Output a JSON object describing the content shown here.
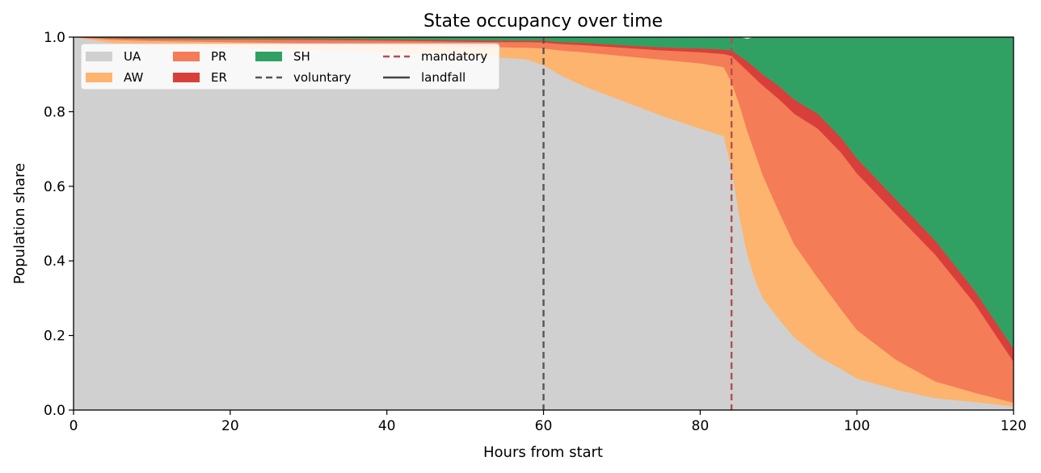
{
  "chart_data": {
    "type": "area",
    "title": "State occupancy over time",
    "xlabel": "Hours from start",
    "ylabel": "Population share",
    "xlim": [
      0,
      120
    ],
    "ylim": [
      0,
      1
    ],
    "x_ticks": [
      "0",
      "20",
      "40",
      "60",
      "80",
      "100",
      "120"
    ],
    "y_ticks": [
      "0.0",
      "0.2",
      "0.4",
      "0.6",
      "0.8",
      "1.0"
    ],
    "legend_position": "top-left",
    "grid": false,
    "x": [
      0,
      5,
      10,
      20,
      30,
      40,
      50,
      55,
      58,
      60,
      62,
      65,
      70,
      75,
      80,
      83,
      84,
      85,
      86,
      87,
      88,
      90,
      92,
      95,
      98,
      100,
      105,
      110,
      115,
      120
    ],
    "series": [
      {
        "name": "UA",
        "color": "#d0d0d0",
        "values": [
          1.0,
          0.985,
          0.978,
          0.972,
          0.966,
          0.96,
          0.95,
          0.945,
          0.94,
          0.925,
          0.9,
          0.87,
          0.83,
          0.79,
          0.755,
          0.735,
          0.65,
          0.52,
          0.42,
          0.35,
          0.3,
          0.245,
          0.195,
          0.145,
          0.11,
          0.085,
          0.055,
          0.032,
          0.022,
          0.01
        ]
      },
      {
        "name": "AW",
        "color": "#fdb46e",
        "values": [
          0.0,
          0.008,
          0.012,
          0.015,
          0.018,
          0.02,
          0.025,
          0.028,
          0.032,
          0.045,
          0.065,
          0.09,
          0.12,
          0.15,
          0.175,
          0.185,
          0.23,
          0.3,
          0.33,
          0.34,
          0.33,
          0.29,
          0.25,
          0.21,
          0.16,
          0.13,
          0.08,
          0.045,
          0.025,
          0.01
        ]
      },
      {
        "name": "PR",
        "color": "#f47c57",
        "values": [
          0.0,
          0.004,
          0.005,
          0.007,
          0.009,
          0.011,
          0.013,
          0.014,
          0.015,
          0.016,
          0.017,
          0.019,
          0.022,
          0.025,
          0.03,
          0.035,
          0.07,
          0.11,
          0.16,
          0.2,
          0.24,
          0.3,
          0.35,
          0.4,
          0.42,
          0.42,
          0.39,
          0.34,
          0.24,
          0.11
        ]
      },
      {
        "name": "ER",
        "color": "#d93f3a",
        "values": [
          0.0,
          0.001,
          0.002,
          0.002,
          0.003,
          0.003,
          0.004,
          0.004,
          0.004,
          0.005,
          0.005,
          0.006,
          0.007,
          0.008,
          0.01,
          0.012,
          0.015,
          0.02,
          0.025,
          0.028,
          0.03,
          0.035,
          0.038,
          0.04,
          0.04,
          0.04,
          0.04,
          0.038,
          0.035,
          0.035
        ]
      },
      {
        "name": "SH",
        "color": "#31a163",
        "values": [
          0.0,
          0.002,
          0.003,
          0.004,
          0.004,
          0.006,
          0.008,
          0.009,
          0.009,
          0.009,
          0.013,
          0.015,
          0.021,
          0.027,
          0.03,
          0.033,
          0.035,
          0.05,
          0.06,
          0.082,
          0.1,
          0.13,
          0.167,
          0.205,
          0.27,
          0.325,
          0.435,
          0.545,
          0.678,
          0.835
        ]
      }
    ],
    "reference_lines": [
      {
        "name": "voluntary",
        "x": 60,
        "color": "#555555",
        "style": "dashed"
      },
      {
        "name": "mandatory",
        "x": 84,
        "color": "#b05050",
        "style": "dashed"
      },
      {
        "name": "landfall",
        "color": "#444444",
        "style": "solid"
      }
    ]
  }
}
